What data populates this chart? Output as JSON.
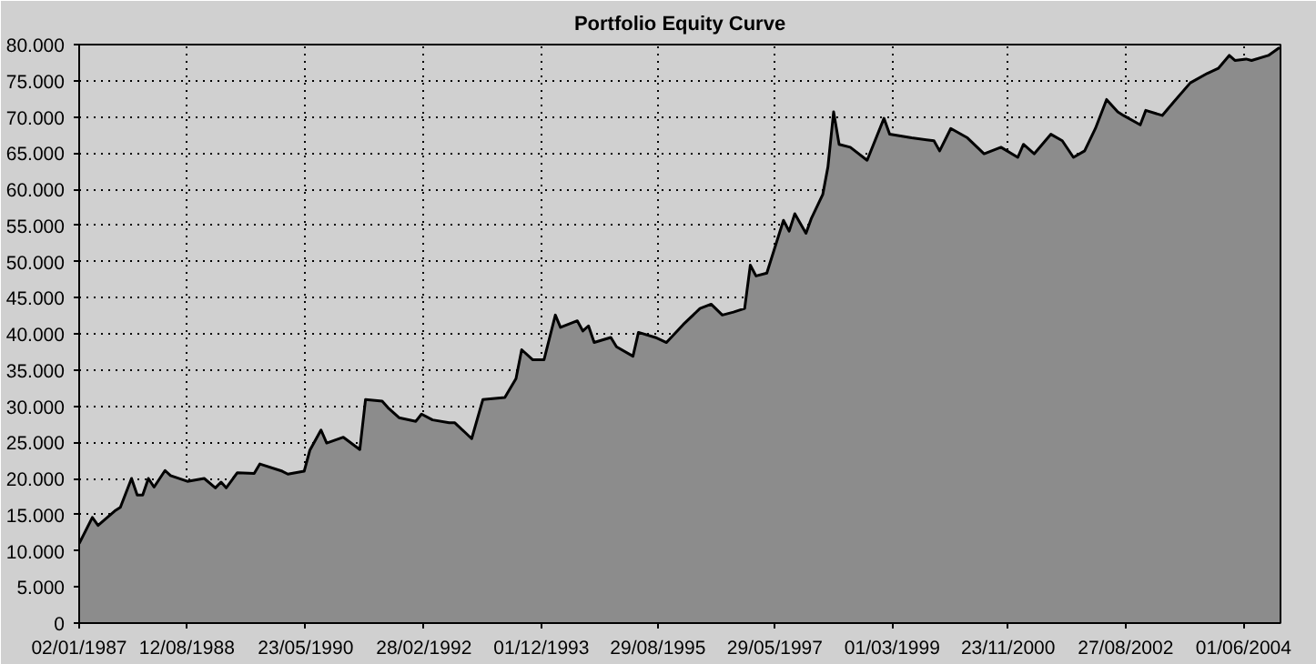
{
  "chart_data": {
    "type": "area",
    "title": "Portfolio Equity Curve",
    "x": [
      "1987-01-02",
      "1987-03",
      "1987-04",
      "1987-07",
      "1987-08",
      "1987-10",
      "1987-11",
      "1987-12",
      "1988-01",
      "1988-02",
      "1988-04",
      "1988-05",
      "1988-08",
      "1988-11",
      "1989-01",
      "1989-02",
      "1989-03",
      "1989-05",
      "1989-08",
      "1989-09",
      "1990-01",
      "1990-02",
      "1990-05",
      "1990-06",
      "1990-08",
      "1990-09",
      "1990-12",
      "1991-03",
      "1991-04",
      "1991-07",
      "1991-08",
      "1991-10",
      "1992-01",
      "1992-02",
      "1992-04",
      "1992-07",
      "1992-08",
      "1992-11",
      "1993-01",
      "1993-05",
      "1993-07",
      "1993-08",
      "1993-10",
      "1993-12",
      "1994-02",
      "1994-03",
      "1994-06",
      "1994-07",
      "1994-08",
      "1994-09",
      "1994-12",
      "1995-01",
      "1995-04",
      "1995-05",
      "1995-08",
      "1995-10",
      "1996-01",
      "1996-04",
      "1996-06",
      "1996-08",
      "1996-10",
      "1996-12",
      "1997-01",
      "1997-02",
      "1997-04",
      "1997-07",
      "1997-08",
      "1997-09",
      "1997-11",
      "1997-12",
      "1998-02",
      "1998-03",
      "1998-04",
      "1998-05",
      "1998-07",
      "1998-10",
      "1999-01",
      "1999-02",
      "1999-06",
      "1999-10",
      "1999-11",
      "2000-01",
      "2000-04",
      "2000-07",
      "2000-10",
      "2001-01",
      "2001-02",
      "2001-04",
      "2001-07",
      "2001-09",
      "2001-11",
      "2002-01",
      "2002-03",
      "2002-05",
      "2002-07",
      "2002-08",
      "2002-11",
      "2002-12",
      "2003-03",
      "2003-05",
      "2003-08",
      "2003-11",
      "2004-01",
      "2004-03",
      "2004-04",
      "2004-06",
      "2004-07",
      "2004-10",
      "2004-12"
    ],
    "series": [
      {
        "color": "#8c8c8c",
        "values": [
          11000,
          14600,
          13500,
          15500,
          16000,
          20000,
          17700,
          17700,
          20000,
          18800,
          21100,
          20400,
          19600,
          20000,
          18700,
          19500,
          18700,
          20800,
          20700,
          22000,
          21000,
          20600,
          21000,
          23900,
          26700,
          24900,
          25700,
          24000,
          30900,
          30700,
          29800,
          28400,
          27900,
          28900,
          28100,
          27700,
          27700,
          25500,
          30900,
          31200,
          33800,
          37800,
          36400,
          36400,
          42600,
          40900,
          41800,
          40400,
          41100,
          38800,
          39500,
          38200,
          36900,
          40200,
          39500,
          38800,
          41300,
          43500,
          44100,
          42600,
          43000,
          43500,
          49500,
          48000,
          48400,
          55700,
          54200,
          56600,
          53900,
          56000,
          59300,
          63100,
          70700,
          66200,
          65800,
          64000,
          69800,
          67600,
          67100,
          66700,
          65300,
          68400,
          67100,
          64900,
          65800,
          64400,
          66200,
          64900,
          67600,
          66700,
          64400,
          65300,
          68400,
          72400,
          70700,
          70200,
          68900,
          70900,
          70200,
          72000,
          74700,
          76000,
          76700,
          78500,
          77800,
          78000,
          77800,
          78500,
          79600
        ]
      }
    ],
    "xlim": [
      "1987-01-02",
      "2004-12-20"
    ],
    "xticks": [
      {
        "value": "1987-01-02",
        "label": "02/01/1987"
      },
      {
        "value": "1988-08-12",
        "label": "12/08/1988"
      },
      {
        "value": "1990-05-23",
        "label": "23/05/1990"
      },
      {
        "value": "1992-02-28",
        "label": "28/02/1992"
      },
      {
        "value": "1993-12-01",
        "label": "01/12/1993"
      },
      {
        "value": "1995-08-29",
        "label": "29/08/1995"
      },
      {
        "value": "1997-05-29",
        "label": "29/05/1997"
      },
      {
        "value": "1999-03-01",
        "label": "01/03/1999"
      },
      {
        "value": "2000-11-23",
        "label": "23/11/2000"
      },
      {
        "value": "2002-08-27",
        "label": "27/08/2002"
      },
      {
        "value": "2004-06-01",
        "label": "01/06/2004"
      }
    ],
    "ylim": [
      0,
      80000
    ],
    "yticks": [
      0,
      {
        "value": 5000,
        "label": "5.000"
      },
      {
        "value": 10000,
        "label": "10.000"
      },
      {
        "value": 15000,
        "label": "15.000"
      },
      {
        "value": 20000,
        "label": "20.000"
      },
      {
        "value": 25000,
        "label": "25.000"
      },
      {
        "value": 30000,
        "label": "30.000"
      },
      {
        "value": 35000,
        "label": "35.000"
      },
      {
        "value": 40000,
        "label": "40.000"
      },
      {
        "value": 45000,
        "label": "45.000"
      },
      {
        "value": 50000,
        "label": "50.000"
      },
      {
        "value": 55000,
        "label": "55.000"
      },
      {
        "value": 60000,
        "label": "60.000"
      },
      {
        "value": 65000,
        "label": "65.000"
      },
      {
        "value": 70000,
        "label": "70.000"
      },
      {
        "value": 75000,
        "label": "75.000"
      },
      {
        "value": 80000,
        "label": "80.000"
      }
    ],
    "grid": true
  }
}
